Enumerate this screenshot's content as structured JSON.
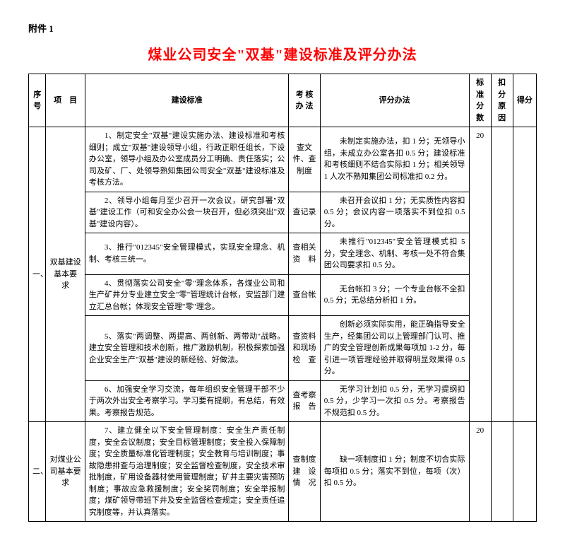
{
  "attachment_label": "附件 1",
  "title": "煤业公司安全\"双基\"建设标准及评分办法",
  "headers": {
    "seq": "序号",
    "item": "项　目",
    "standard": "建设标准",
    "method": "考 核 办 法",
    "eval": "评分办法",
    "std_score": "标准分数",
    "deduct_reason": "扣分原因",
    "score": "得分"
  },
  "sections": [
    {
      "seq": "一、",
      "item": "双基建设基本要　求",
      "std_score": "20",
      "rows": [
        {
          "standard": "1、制定安全\"双基\"建设实施办法、建设标准和考核细则；成立\"双基\"建设领导小组，行政正职任组长，下设办公室，领导小组及办公室成员分工明确、责任落实；公司及矿、厂、处领导熟知集团公司安全\"双基\"建设标准及考核方法。",
          "method": "查文件、查制度",
          "eval": "未制定实施办法，扣 1 分；无领导小组，未成立办公室各扣 0.5 分；建设标准和考核细则不结合实际扣 1 分；相关领导 1 人次不熟知集团公司标准扣 0.2 分。"
        },
        {
          "standard": "2、领导小组每月至少召开一次会议，研究部署\"双基\"建设工作（可和安全办公会一块召开，但必须突出\"双基\"建设内容）。",
          "method": "查记录",
          "eval": "未召开会议扣 1 分；无实质性内容扣 0.5 分；会议内容一项落实不到位扣 0.5 分。"
        },
        {
          "standard": "3、推行\"012345\"安全管理模式，实现安全理念、机制、考核三统一。",
          "method": "查相关资　料",
          "eval": "未推行\"012345\"安全管理模式扣 5 分，安全理念、机制、考核一处不符合集团公司要求扣 0.5 分。"
        },
        {
          "standard": "4、贯彻落实公司安全\"零\"理念体系，各煤业公司和生产矿井分专业建立安全\"零\"管理统计台帐，安监部门建立汇总台帐；体现安全管理\"零\"理念。",
          "method": "查台帐",
          "eval": "无台帐扣 3 分；一个专业台帐不全扣 0.5 分；无总结分析扣 1 分。"
        },
        {
          "standard": "5、落实\"两调整、两提高、两创新、两带动\"战略。建立安全管理和技术创新，推广激励机制，积极探索加强企业安全生产\"双基\"建设的新经验、好做法。",
          "method": "查资料和现场检　查",
          "eval": "创新必须实际实用，能正确指导安全生产，经集团公司以上管理部门认可、推广的安全管理创新成果每项加 1-2 分，每引进一项管理经验并取得明显效果得 0.5 分。"
        },
        {
          "standard": "6、加强安全学习交流，每年组织安全管理干部不少于两次外出安全考察学习。学习要有提纲，有总结，有效果。考察报告规范。",
          "method": "查考察报　告",
          "eval": "无学习计划扣 0.5 分，无学习提纲扣 0.5 分，少学习一次扣 0.5 分。考察报告不规范扣 0.5 分。"
        }
      ]
    },
    {
      "seq": "二、",
      "item": "对煤业公司基本要求",
      "std_score": "20",
      "rows": [
        {
          "standard": "7、建立健全以下安全管理制度：安全生产责任制度，安全会议制度；安全目标管理制度；安全投入保障制度；安全质量标准化管理制度；安全教育与培训制度；事故隐患排查与治理制度；安全监督检查制度，安全技术审批制度，矿用设备器材使用管理制度；矿井主要灾害预防制度；事故应急救援制度；安全奖罚制度；安全举报制度；煤矿领导带班下井及安全监督检查规定；安全责任追究制度等，并认真落实。",
          "method": "查制度建　设情　况",
          "eval": "缺一项制度扣 1 分；制度不切合实际每项扣 0.5 分；落实不到位，每项（次）扣 0.5 分。"
        }
      ]
    }
  ]
}
